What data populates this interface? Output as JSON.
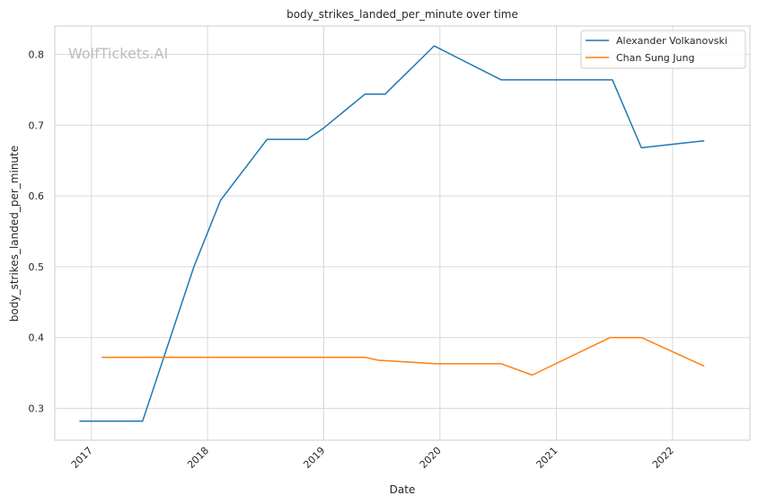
{
  "chart_data": {
    "type": "line",
    "title": "body_strikes_landed_per_minute over time",
    "xlabel": "Date",
    "ylabel": "body_strikes_landed_per_minute",
    "watermark": "WolfTickets.AI",
    "xlim": [
      "2016-09-08",
      "2022-09-01"
    ],
    "ylim": [
      0.255,
      0.84
    ],
    "x_ticks": [
      "2017",
      "2018",
      "2019",
      "2020",
      "2021",
      "2022"
    ],
    "x_tick_dates": [
      "2017-01-01",
      "2018-01-01",
      "2019-01-01",
      "2020-01-01",
      "2021-01-01",
      "2022-01-01"
    ],
    "y_ticks": [
      "0.3",
      "0.4",
      "0.5",
      "0.6",
      "0.7",
      "0.8"
    ],
    "y_tick_values": [
      0.3,
      0.4,
      0.5,
      0.6,
      0.7,
      0.8
    ],
    "grid": true,
    "legend_position": "top-right",
    "series": [
      {
        "name": "Alexander Volkanovski",
        "color": "#1f77b4",
        "x": [
          "2016-11-26",
          "2017-06-11",
          "2017-11-19",
          "2018-02-11",
          "2018-07-07",
          "2018-11-10",
          "2018-12-29",
          "2019-05-11",
          "2019-07-13",
          "2019-12-14",
          "2020-07-12",
          "2021-06-26",
          "2021-09-25",
          "2022-04-09"
        ],
        "values": [
          0.282,
          0.282,
          0.5,
          0.594,
          0.68,
          0.68,
          0.695,
          0.744,
          0.744,
          0.812,
          0.764,
          0.764,
          0.668,
          0.678
        ]
      },
      {
        "name": "Chan Sung Jung",
        "color": "#ff7f0e",
        "x": [
          "2017-02-04",
          "2019-05-11",
          "2019-06-22",
          "2019-12-21",
          "2020-07-12",
          "2020-10-17",
          "2021-06-19",
          "2021-09-25",
          "2022-04-09"
        ],
        "values": [
          0.372,
          0.372,
          0.368,
          0.363,
          0.363,
          0.347,
          0.4,
          0.4,
          0.36
        ]
      }
    ]
  }
}
